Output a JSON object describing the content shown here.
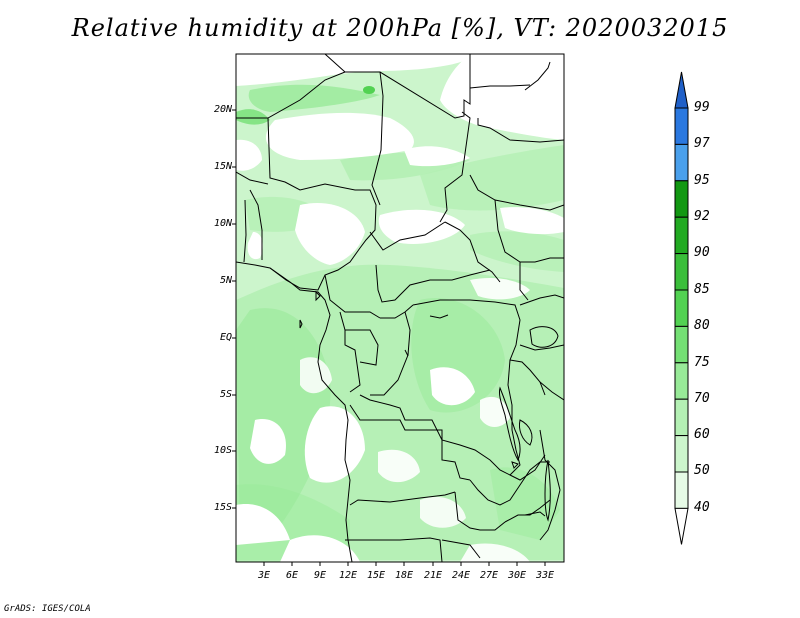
{
  "title": "Relative humidity at 200hPa [%], VT: 2020032015",
  "credit": "GrADS: IGES/COLA",
  "latitude_labels": [
    "20N",
    "15N",
    "10N",
    "5N",
    "EQ",
    "5S",
    "10S",
    "15S"
  ],
  "longitude_labels": [
    "3E",
    "6E",
    "9E",
    "12E",
    "15E",
    "18E",
    "21E",
    "24E",
    "27E",
    "30E",
    "33E"
  ],
  "colorbar": {
    "levels": [
      "99",
      "97",
      "95",
      "92",
      "90",
      "85",
      "80",
      "75",
      "70",
      "60",
      "50",
      "40"
    ],
    "colors": [
      "#2060c8",
      "#2a78e0",
      "#4aa0ec",
      "#129812",
      "#22aa22",
      "#3abe3a",
      "#52d252",
      "#74e074",
      "#98ea98",
      "#b4f0b4",
      "#ccf5cc",
      "#e6fae6",
      "#ffffff"
    ]
  },
  "field_colors": {
    "low": "#ffffff",
    "band_40_50": "#e6fae6",
    "band_50_60": "#ccf5cc",
    "band_60_70": "#b4f0b4",
    "band_70_75": "#98ea98",
    "band_80_85": "#52d252"
  }
}
